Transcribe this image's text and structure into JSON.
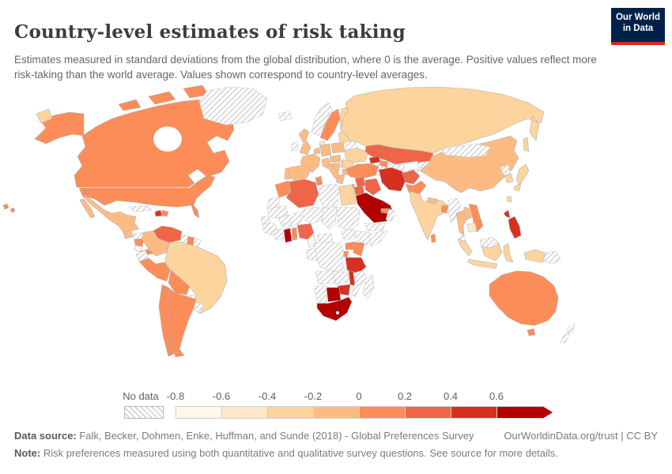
{
  "header": {
    "title": "Country-level estimates of risk taking",
    "subtitle": "Estimates measured in standard deviations from the global distribution, where 0 is the average. Positive values reflect more risk-taking than the world average. Values shown correspond to country-level averages.",
    "logo": {
      "line1": "Our World",
      "line2": "in Data",
      "bg_color": "#002147",
      "accent_color": "#d42b20"
    }
  },
  "legend": {
    "no_data_label": "No data",
    "tick_labels": [
      "-0.8",
      "-0.6",
      "-0.4",
      "-0.2",
      "0",
      "0.2",
      "0.4",
      "0.6"
    ],
    "bin_colors": [
      "#fff7ec",
      "#fee8c8",
      "#fdd49e",
      "#fdbb84",
      "#fc8d59",
      "#ef6548",
      "#d7301f",
      "#b30000"
    ]
  },
  "footer": {
    "source_label": "Data source:",
    "source_text": " Falk, Becker, Dohmen, Enke, Huffman, and Sunde (2018) - Global Preferences Survey",
    "link_text": "OurWorldinData.org/trust | CC BY",
    "note_label": "Note:",
    "note_text": " Risk preferences measured using both quantitative and qualitative survey questions. See source for more details."
  },
  "map": {
    "border_color": "#aab2b8",
    "nodata_border_color": "#c9c9c9",
    "hatch_line_color": "#d4d4d4",
    "regions": {
      "canada": 4,
      "alaska": 4,
      "arctic-a": 4,
      "arctic-b": 4,
      "arctic-c": 4,
      "arctic-d": 4,
      "usa": 4,
      "hawaii": 4,
      "greenland": "nodata",
      "iceland": "nodata",
      "mexico": 3,
      "guatemala": 3,
      "honduras": "nodata",
      "nicaragua": 4,
      "costa-rica": 0,
      "panama": 4,
      "cuba": "nodata",
      "haiti": 6,
      "dominican-republic": 4,
      "venezuela": 5,
      "colombia": 3,
      "guyana": "nodata",
      "suriname": 4,
      "french-guiana": "nodata",
      "ecuador": "nodata",
      "peru": 4,
      "brazil": 2,
      "bolivia": 4,
      "paraguay": "nodata",
      "uruguay": "nodata",
      "chile": 4,
      "argentina": 4,
      "norway": "nodata",
      "sweden": 4,
      "finland": 2,
      "denmark": 1,
      "baltics": 2,
      "uk": 3,
      "ireland": "nodata",
      "france": 3,
      "benelux": 3,
      "germany": 3,
      "poland": 3,
      "czech-austria": 3,
      "spain": 3,
      "portugal": 3,
      "italy": 3,
      "hungary": 1,
      "balkans": 3,
      "greece": 3,
      "romania": 2,
      "bulgaria": 3,
      "belarus": "nodata",
      "ukraine": 2,
      "russia": 2,
      "kazakhstan": 5,
      "uzbekistan": "nodata",
      "turkmenistan": "nodata",
      "kyrgyzstan": "nodata",
      "tajikistan": "nodata",
      "georgia": 6,
      "azerbaijan": 4,
      "turkey": 4,
      "syria": 5,
      "iraq": 5,
      "israel": 4,
      "jordan": 5,
      "saudi-arabia": 7,
      "yemen": "nodata",
      "oman": "nodata",
      "uae": 4,
      "iran": 6,
      "afghanistan": 5,
      "pakistan": 4,
      "morocco": 4,
      "western-sahara": "nodata",
      "algeria": 5,
      "tunisia": 4,
      "libya": "nodata",
      "egypt": 2,
      "mauritania": "nodata",
      "mali": "nodata",
      "niger": "nodata",
      "chad": "nodata",
      "sudan": "nodata",
      "senegal": "nodata",
      "guinea": "nodata",
      "ivory-coast": "nodata",
      "burkina": "nodata",
      "ghana": 7,
      "togo-benin": 4,
      "nigeria": 5,
      "cameroon": 0,
      "central-african": "nodata",
      "south-sudan": "nodata",
      "ethiopia": "nodata",
      "somalia": "nodata",
      "uganda": 4,
      "kenya": 4,
      "rwanda-burundi": 4,
      "drc": "nodata",
      "gabon-congo": "nodata",
      "tanzania": 6,
      "angola": "nodata",
      "zambia": "nodata",
      "malawi": 6,
      "mozambique": "nodata",
      "zimbabwe": 6,
      "botswana": 7,
      "namibia": "nodata",
      "south-africa": 7,
      "madagascar": "nodata",
      "india": 2,
      "nepal": 3,
      "bangladesh": 4,
      "sri-lanka": 4,
      "myanmar": "nodata",
      "thailand": 3,
      "laos": 3,
      "vietnam": 4,
      "cambodia": 1,
      "malay-peninsula": "nodata",
      "china": 3,
      "mongolia": "nodata",
      "north-korea": "nodata",
      "south-korea": 2,
      "japan": 2,
      "taiwan": 2,
      "philippines": 6,
      "sumatra": 2,
      "java": 2,
      "malay-borneo": "nodata",
      "kalimantan": 2,
      "sulawesi": 2,
      "west-papua": 2,
      "papua-new-guinea": "nodata",
      "australia": 4,
      "tasmania": 4,
      "new-zealand": "nodata"
    }
  },
  "chart_data": {
    "type": "heatmap",
    "variant": "world-choropleth",
    "title": "Country-level estimates of risk taking",
    "value_label": "Risk taking (standard deviations from global average)",
    "bin_edges": [
      -0.8,
      -0.6,
      -0.4,
      -0.2,
      0,
      0.2,
      0.4,
      0.6
    ],
    "bin_colors": [
      "#fff7ec",
      "#fee8c8",
      "#fdd49e",
      "#fdbb84",
      "#fc8d59",
      "#ef6548",
      "#d7301f",
      "#b30000"
    ],
    "legend_no_data": "No data (hatched)",
    "countries_by_bin": {
      "-0.8 to -0.6": [
        "Cameroon",
        "Costa Rica"
      ],
      "-0.6 to -0.4": [
        "Hungary",
        "Denmark",
        "Cambodia"
      ],
      "-0.4 to -0.2": [
        "Brazil",
        "Russia",
        "Finland",
        "Ukraine",
        "Romania",
        "Lithuania",
        "Estonia",
        "Latvia",
        "Egypt",
        "India",
        "Indonesia",
        "Japan",
        "South Korea",
        "Taiwan"
      ],
      "-0.2 to 0": [
        "Mexico",
        "Guatemala",
        "Colombia",
        "United Kingdom",
        "France",
        "Spain",
        "Portugal",
        "Germany",
        "Netherlands",
        "Poland",
        "Austria",
        "Czechia",
        "Italy",
        "Bosnia and Herzegovina",
        "Serbia",
        "Greece",
        "Bulgaria",
        "China",
        "Thailand",
        "Laos",
        "Nepal"
      ],
      "0 to 0.2": [
        "Canada",
        "United States",
        "Dominican Republic",
        "Nicaragua",
        "Panama",
        "Peru",
        "Bolivia",
        "Chile",
        "Argentina",
        "Suriname",
        "Sweden",
        "Morocco",
        "Tunisia",
        "Togo",
        "Benin",
        "Uganda",
        "Kenya",
        "Rwanda",
        "Burundi",
        "Turkey",
        "Azerbaijan",
        "Israel",
        "United Arab Emirates",
        "Pakistan",
        "Bangladesh",
        "Sri Lanka",
        "Vietnam",
        "Australia"
      ],
      "0.2 to 0.4": [
        "Venezuela",
        "Algeria",
        "Nigeria",
        "Kazakhstan",
        "Iraq",
        "Jordan",
        "Syria",
        "Afghanistan"
      ],
      "0.4 to 0.6": [
        "Haiti",
        "Georgia",
        "Iran",
        "Tanzania",
        "Malawi",
        "Zimbabwe",
        "Philippines"
      ],
      "0.6 and above": [
        "Saudi Arabia",
        "Ghana",
        "Botswana",
        "South Africa"
      ]
    },
    "no_data_countries": [
      "Greenland",
      "Iceland",
      "Ireland",
      "Norway",
      "Belarus",
      "Cuba",
      "Honduras",
      "Ecuador",
      "Paraguay",
      "Uruguay",
      "Guyana",
      "French Guiana",
      "Libya",
      "Western Sahara",
      "Mauritania",
      "Mali",
      "Niger",
      "Chad",
      "Sudan",
      "South Sudan",
      "Ethiopia",
      "Somalia",
      "Senegal",
      "Guinea",
      "Ivory Coast",
      "Burkina Faso",
      "Central African Republic",
      "Gabon",
      "Republic of Congo",
      "DR Congo",
      "Angola",
      "Zambia",
      "Mozambique",
      "Namibia",
      "Madagascar",
      "Uzbekistan",
      "Turkmenistan",
      "Kyrgyzstan",
      "Tajikistan",
      "Yemen",
      "Oman",
      "Mongolia",
      "North Korea",
      "Myanmar",
      "Malaysia",
      "Papua New Guinea",
      "New Zealand"
    ]
  }
}
